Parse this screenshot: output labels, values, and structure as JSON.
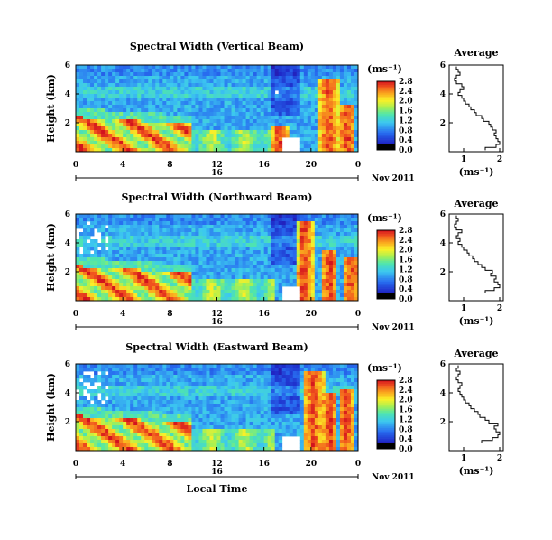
{
  "chart_data": [
    {
      "type": "heatmap",
      "title": "Spectral Width (Vertical Beam)",
      "ylabel": "Height (km)",
      "xlabel": "",
      "ylim": [
        0,
        6
      ],
      "xlim": [
        0,
        24
      ],
      "x_ticks": [
        "0",
        "4",
        "8",
        "12",
        "16",
        "20",
        "0"
      ],
      "y_ticks": [
        "2",
        "4",
        "6"
      ],
      "date_tick": "16",
      "date_label": "Nov 2011",
      "colorbar": {
        "unit": "(ms⁻¹)",
        "ticks": [
          "0.0",
          "0.4",
          "0.8",
          "1.2",
          "1.6",
          "2.0",
          "2.4",
          "2.8"
        ]
      },
      "average": {
        "title": "Average",
        "xlabel": "(ms⁻¹)",
        "x_ticks": [
          "1",
          "2"
        ],
        "y_ticks": [
          "2",
          "4",
          "6"
        ],
        "xlim": [
          0.6,
          2.1
        ],
        "ylim": [
          0,
          6
        ],
        "height": [
          0.2,
          0.4,
          0.6,
          0.8,
          1.0,
          1.2,
          1.4,
          1.6,
          1.8,
          2.0,
          2.2,
          2.4,
          2.6,
          2.8,
          3.0,
          3.2,
          3.4,
          3.6,
          3.8,
          4.0,
          4.2,
          4.4,
          4.6,
          4.8,
          5.0,
          5.2,
          5.4,
          5.6,
          5.8
        ],
        "width": [
          1.6,
          1.9,
          2.0,
          1.95,
          1.9,
          1.85,
          1.9,
          1.8,
          1.75,
          1.7,
          1.55,
          1.5,
          1.35,
          1.3,
          1.2,
          1.15,
          1.05,
          1.0,
          0.95,
          0.85,
          0.9,
          1.0,
          0.95,
          0.8,
          0.75,
          0.8,
          0.9,
          0.85,
          0.8
        ]
      }
    },
    {
      "type": "heatmap",
      "title": "Spectral Width (Northward Beam)",
      "ylabel": "Height (km)",
      "xlabel": "",
      "ylim": [
        0,
        6
      ],
      "xlim": [
        0,
        24
      ],
      "x_ticks": [
        "0",
        "4",
        "8",
        "12",
        "16",
        "20",
        "0"
      ],
      "y_ticks": [
        "2",
        "4",
        "6"
      ],
      "date_tick": "16",
      "date_label": "Nov 2011",
      "colorbar": {
        "unit": "(ms⁻¹)",
        "ticks": [
          "0.0",
          "0.4",
          "0.8",
          "1.2",
          "1.6",
          "2.0",
          "2.4",
          "2.8"
        ]
      },
      "average": {
        "title": "Average",
        "xlabel": "(ms⁻¹)",
        "x_ticks": [
          "1",
          "2"
        ],
        "y_ticks": [
          "2",
          "4",
          "6"
        ],
        "xlim": [
          0.6,
          2.1
        ],
        "ylim": [
          0,
          6
        ],
        "height": [
          0.6,
          0.8,
          1.0,
          1.2,
          1.4,
          1.6,
          1.8,
          2.0,
          2.2,
          2.4,
          2.6,
          2.8,
          3.0,
          3.2,
          3.4,
          3.6,
          3.8,
          4.0,
          4.2,
          4.4,
          4.6,
          4.8,
          5.0,
          5.2,
          5.4,
          5.6,
          5.8
        ],
        "width": [
          1.6,
          1.85,
          2.0,
          1.95,
          1.85,
          1.9,
          1.75,
          1.8,
          1.6,
          1.5,
          1.4,
          1.3,
          1.25,
          1.15,
          1.1,
          1.0,
          0.95,
          0.85,
          0.9,
          0.8,
          0.85,
          0.95,
          0.8,
          0.75,
          0.8,
          0.85,
          0.8
        ]
      }
    },
    {
      "type": "heatmap",
      "title": "Spectral Width (Eastward Beam)",
      "ylabel": "Height (km)",
      "xlabel": "Local Time",
      "ylim": [
        0,
        6
      ],
      "xlim": [
        0,
        24
      ],
      "x_ticks": [
        "0",
        "4",
        "8",
        "12",
        "16",
        "20",
        "0"
      ],
      "y_ticks": [
        "2",
        "4",
        "6"
      ],
      "date_tick": "16",
      "date_label": "Nov 2011",
      "colorbar": {
        "unit": "(ms⁻¹)",
        "ticks": [
          "0.0",
          "0.4",
          "0.8",
          "1.2",
          "1.6",
          "2.0",
          "2.4",
          "2.8"
        ]
      },
      "average": {
        "title": "Average",
        "xlabel": "(ms⁻¹)",
        "x_ticks": [
          "1",
          "2"
        ],
        "y_ticks": [
          "2",
          "4",
          "6"
        ],
        "xlim": [
          0.6,
          2.1
        ],
        "ylim": [
          0,
          6
        ],
        "height": [
          0.6,
          0.8,
          1.0,
          1.2,
          1.4,
          1.6,
          1.8,
          2.0,
          2.2,
          2.4,
          2.6,
          2.8,
          3.0,
          3.2,
          3.4,
          3.6,
          3.8,
          4.0,
          4.2,
          4.4,
          4.6,
          4.8,
          5.0,
          5.2,
          5.4,
          5.6,
          5.8
        ],
        "width": [
          1.5,
          1.8,
          1.95,
          2.0,
          1.9,
          1.85,
          1.95,
          1.7,
          1.6,
          1.45,
          1.4,
          1.3,
          1.2,
          1.15,
          1.05,
          1.0,
          0.95,
          0.9,
          0.85,
          0.9,
          0.95,
          0.85,
          0.8,
          0.85,
          0.9,
          0.8,
          0.85
        ]
      }
    }
  ]
}
